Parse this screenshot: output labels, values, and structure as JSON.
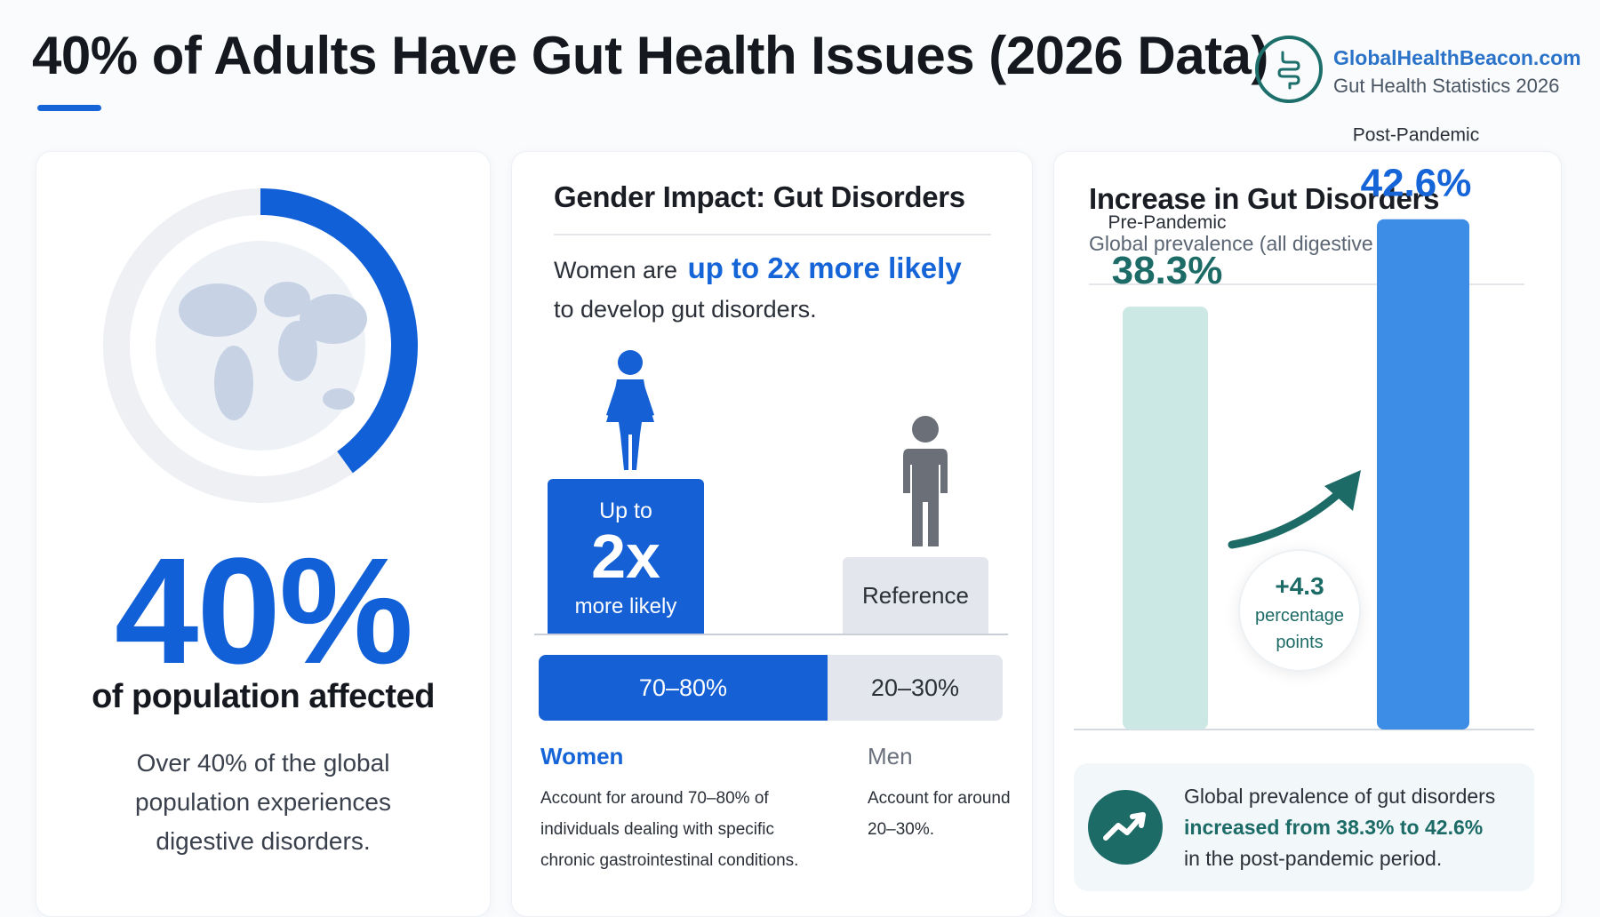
{
  "header": {
    "title": "40% of Adults Have Gut Health Issues (2026 Data)",
    "brand_site": "GlobalHealthBeacon.com",
    "brand_subtitle": "Gut Health Statistics 2026",
    "logo_icon": "intestine-icon",
    "accent_color": "#1565d8"
  },
  "card_population": {
    "ring_percent": 40,
    "ring_color": "#1260d8",
    "icon": "globe-icon",
    "big_stat": "40%",
    "big_stat_label": "of population affected",
    "description": "Over 40% of the global population experiences digestive disorders."
  },
  "card_gender": {
    "title": "Gender Impact: Gut Disorders",
    "intro_prefix": "Women are",
    "intro_emphasis": "up to 2x more likely",
    "intro_suffix": "to develop gut disorders.",
    "women_icon": "woman-icon",
    "men_icon": "man-icon",
    "women_block_top": "Up to",
    "women_block_big": "2x",
    "women_block_bottom": "more likely",
    "men_block": "Reference",
    "women_share_percent": 75,
    "women_range": "70–80%",
    "men_range": "20–30%",
    "women_label": "Women",
    "men_label": "Men",
    "women_desc": "Account for around 70–80% of individuals dealing with specific chronic gastrointestinal conditions.",
    "men_desc": "Account for around 20–30%.",
    "women_color": "#1560d4",
    "men_color": "#e3e6ec"
  },
  "card_increase": {
    "title": "Increase in Gut Disorders",
    "subtitle": "Global prevalence (all digestive disorders)",
    "chart_data": {
      "type": "bar",
      "categories": [
        "Pre-Pandemic",
        "Post-Pandemic"
      ],
      "values": [
        38.3,
        42.6
      ],
      "value_labels": [
        "38.3%",
        "42.6%"
      ],
      "colors": [
        "#cce8e4",
        "#3d8ce6"
      ],
      "label_colors": [
        "#1c6b66",
        "#1565d8"
      ],
      "ylim": [
        0,
        50
      ]
    },
    "delta_value": "+4.3",
    "delta_unit_line1": "percentage",
    "delta_unit_line2": "points",
    "callout_icon": "trend-up-icon",
    "callout_prefix": "Global prevalence of gut disorders",
    "callout_emphasis": "increased from 38.3% to 42.6%",
    "callout_suffix": "in the post-pandemic period."
  }
}
